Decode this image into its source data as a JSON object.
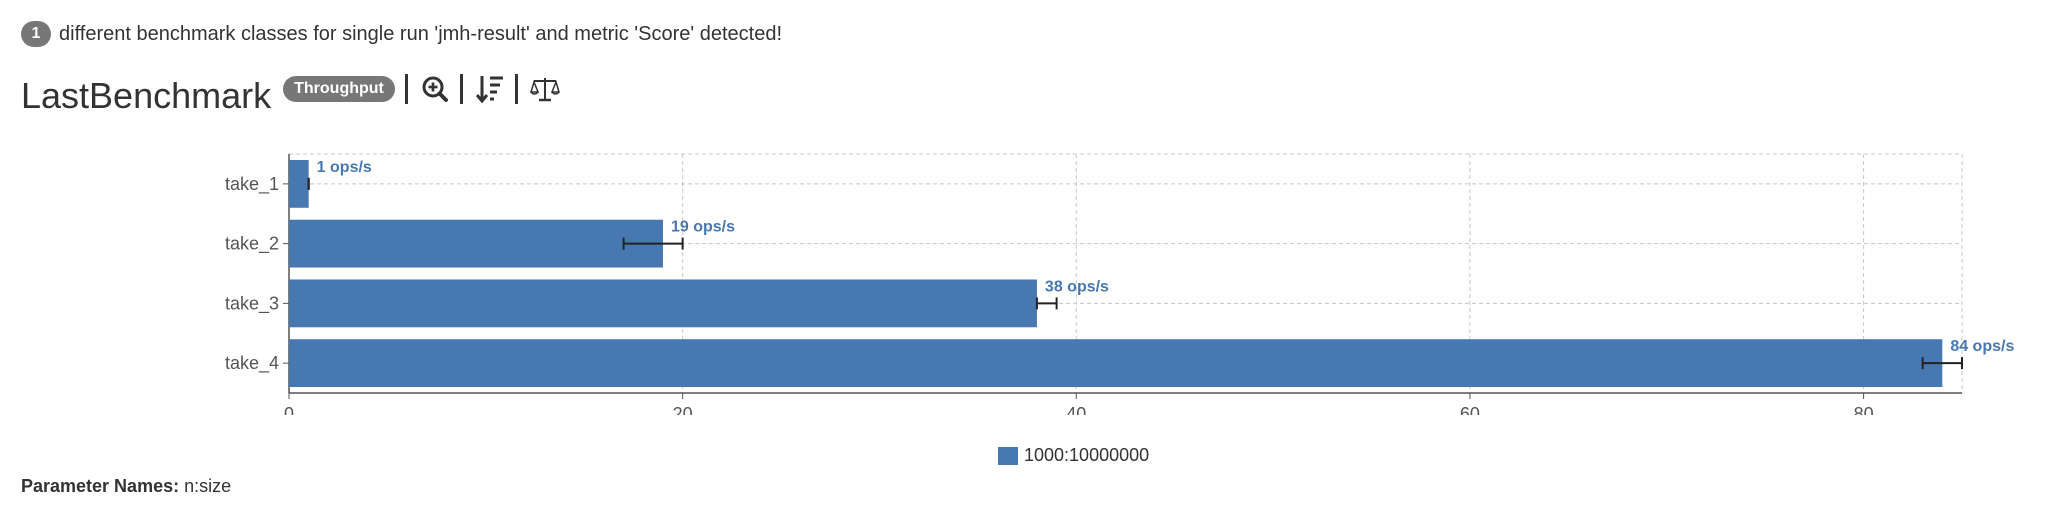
{
  "notice": {
    "count": "1",
    "text": "different benchmark classes for single run 'jmh-result' and metric 'Score' detected!"
  },
  "header": {
    "title": "LastBenchmark",
    "mode_badge": "Throughput",
    "tools": [
      {
        "icon": "zoom-in-icon"
      },
      {
        "icon": "sort-descending-icon"
      },
      {
        "icon": "balance-scale-icon"
      }
    ]
  },
  "legend": {
    "label": "1000:10000000"
  },
  "params": {
    "label": "Parameter Names:",
    "value": "n:size"
  },
  "chart_data": {
    "type": "bar",
    "orientation": "horizontal",
    "categories": [
      "take_1",
      "take_2",
      "take_3",
      "take_4"
    ],
    "series": [
      {
        "name": "1000:10000000",
        "color": "#4878b0",
        "values": [
          1,
          19,
          38,
          84
        ],
        "error_low": [
          1,
          17,
          38,
          83
        ],
        "error_high": [
          1,
          20,
          39,
          85
        ],
        "data_labels": [
          "1 ops/s",
          "19 ops/s",
          "38 ops/s",
          "84 ops/s"
        ]
      }
    ],
    "xlim": [
      0,
      85
    ],
    "xticks": [
      0,
      20,
      40,
      60,
      80
    ],
    "grid": true,
    "legend_position": "bottom"
  }
}
